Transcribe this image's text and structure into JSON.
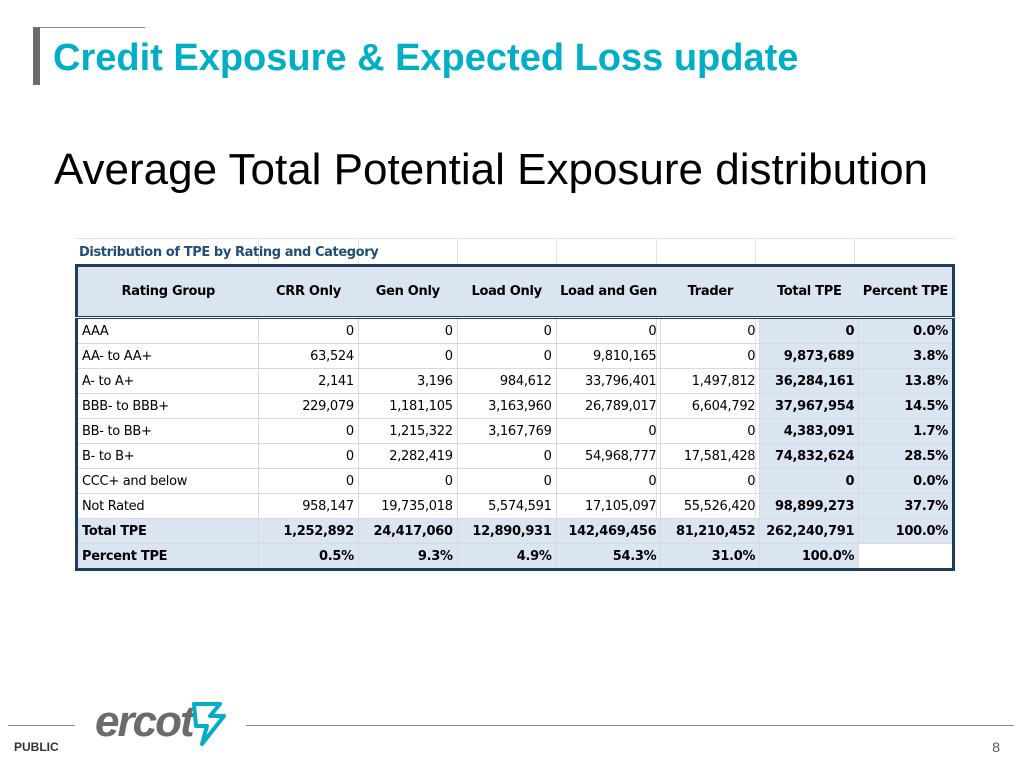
{
  "slide": {
    "title": "Credit Exposure & Expected Loss update",
    "subtitle": "Average Total Potential Exposure distribution"
  },
  "table": {
    "caption": "Distribution of TPE by Rating and Category",
    "headers": [
      "Rating Group",
      "CRR Only",
      "Gen Only",
      "Load Only",
      "Load and Gen",
      "Trader",
      "Total TPE",
      "Percent TPE"
    ],
    "rows": [
      [
        "AAA",
        "0",
        "0",
        "0",
        "0",
        "0",
        "0",
        "0.0%"
      ],
      [
        "AA- to AA+",
        "63,524",
        "0",
        "0",
        "9,810,165",
        "0",
        "9,873,689",
        "3.8%"
      ],
      [
        "A- to A+",
        "2,141",
        "3,196",
        "984,612",
        "33,796,401",
        "1,497,812",
        "36,284,161",
        "13.8%"
      ],
      [
        "BBB- to BBB+",
        "229,079",
        "1,181,105",
        "3,163,960",
        "26,789,017",
        "6,604,792",
        "37,967,954",
        "14.5%"
      ],
      [
        "BB- to BB+",
        "0",
        "1,215,322",
        "3,167,769",
        "0",
        "0",
        "4,383,091",
        "1.7%"
      ],
      [
        "B- to B+",
        "0",
        "2,282,419",
        "0",
        "54,968,777",
        "17,581,428",
        "74,832,624",
        "28.5%"
      ],
      [
        "CCC+ and below",
        "0",
        "0",
        "0",
        "0",
        "0",
        "0",
        "0.0%"
      ],
      [
        "Not Rated",
        "958,147",
        "19,735,018",
        "5,574,591",
        "17,105,097",
        "55,526,420",
        "98,899,273",
        "37.7%"
      ]
    ],
    "total_row": [
      "Total TPE",
      "1,252,892",
      "24,417,060",
      "12,890,931",
      "142,469,456",
      "81,210,452",
      "262,240,791",
      "100.0%"
    ],
    "percent_row": [
      "Percent TPE",
      "0.5%",
      "9.3%",
      "4.9%",
      "54.3%",
      "31.0%",
      "100.0%",
      ""
    ]
  },
  "footer": {
    "classification": "PUBLIC",
    "logo_text": "ercot",
    "page_number": "8"
  },
  "colors": {
    "title": "#00aec7",
    "header_fill": "#dbe5f1",
    "table_border": "#1f3d5c",
    "logo_gray": "#6b6b6b",
    "logo_teal": "#00aec7"
  }
}
